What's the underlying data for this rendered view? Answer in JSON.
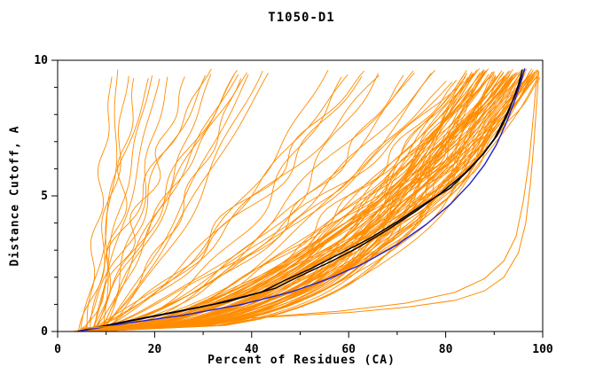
{
  "chart_data": {
    "type": "line",
    "title": "T1050-D1",
    "xlabel": "Percent of Residues (CA)",
    "ylabel": "Distance Cutoff, A",
    "xlim": [
      0,
      100
    ],
    "ylim": [
      0,
      10
    ],
    "x_major_ticks": [
      0,
      20,
      40,
      60,
      80,
      100
    ],
    "x_minor_ticks": [
      10,
      30,
      50,
      70,
      90
    ],
    "y_major_ticks": [
      0,
      5,
      10
    ],
    "y_minor_ticks": [
      1,
      2,
      3,
      4,
      6,
      7,
      8,
      9
    ],
    "grid": false,
    "legend": "none",
    "colors": {
      "ensemble": "#ff8c00",
      "highlight_blue": "#2222cc",
      "highlight_black": "#000000",
      "frame": "#000000",
      "text": "#000000",
      "background": "#ffffff"
    },
    "highlighted_series": [
      {
        "name": "model-black-1",
        "color": "#000000",
        "width": 1.4,
        "points": [
          [
            4,
            0
          ],
          [
            12,
            0.3
          ],
          [
            22,
            0.65
          ],
          [
            32,
            1.0
          ],
          [
            42,
            1.45
          ],
          [
            47,
            1.9
          ],
          [
            52,
            2.3
          ],
          [
            58,
            2.85
          ],
          [
            64,
            3.4
          ],
          [
            70,
            4.05
          ],
          [
            76,
            4.75
          ],
          [
            81,
            5.3
          ],
          [
            85,
            6.0
          ],
          [
            88,
            6.6
          ],
          [
            90.5,
            7.2
          ],
          [
            92.5,
            7.9
          ],
          [
            94,
            8.6
          ],
          [
            95,
            9.1
          ],
          [
            95.8,
            9.65
          ]
        ]
      },
      {
        "name": "model-black-2",
        "color": "#000000",
        "width": 1.4,
        "points": [
          [
            4,
            0
          ],
          [
            13,
            0.32
          ],
          [
            24,
            0.7
          ],
          [
            35,
            1.1
          ],
          [
            45,
            1.6
          ],
          [
            50,
            2.05
          ],
          [
            56,
            2.55
          ],
          [
            62,
            3.1
          ],
          [
            68,
            3.75
          ],
          [
            74,
            4.45
          ],
          [
            79,
            5.1
          ],
          [
            84,
            5.85
          ],
          [
            87.5,
            6.5
          ],
          [
            90,
            7.1
          ],
          [
            92,
            7.8
          ],
          [
            93.8,
            8.5
          ],
          [
            95.2,
            9.1
          ],
          [
            96.2,
            9.65
          ]
        ]
      },
      {
        "name": "model-blue",
        "color": "#2222cc",
        "width": 1.4,
        "points": [
          [
            4,
            0
          ],
          [
            14,
            0.3
          ],
          [
            26,
            0.6
          ],
          [
            38,
            1.0
          ],
          [
            48,
            1.45
          ],
          [
            56,
            1.95
          ],
          [
            63,
            2.5
          ],
          [
            70,
            3.2
          ],
          [
            76,
            3.95
          ],
          [
            81,
            4.7
          ],
          [
            85,
            5.45
          ],
          [
            88,
            6.15
          ],
          [
            90.5,
            6.9
          ],
          [
            92.5,
            7.7
          ],
          [
            94.2,
            8.5
          ],
          [
            95.5,
            9.2
          ],
          [
            96.3,
            9.7
          ]
        ]
      },
      {
        "name": "outlier-low-orange-1",
        "color": "#ff8c00",
        "width": 1.0,
        "points": [
          [
            5,
            0.1
          ],
          [
            15,
            0.25
          ],
          [
            30,
            0.4
          ],
          [
            45,
            0.55
          ],
          [
            60,
            0.7
          ],
          [
            72,
            0.9
          ],
          [
            82,
            1.15
          ],
          [
            88,
            1.5
          ],
          [
            92,
            2.0
          ],
          [
            95,
            2.9
          ],
          [
            96.5,
            4.0
          ],
          [
            97.5,
            5.5
          ],
          [
            98.2,
            7.0
          ],
          [
            98.8,
            8.5
          ],
          [
            99.2,
            9.6
          ]
        ]
      },
      {
        "name": "outlier-low-orange-2",
        "color": "#ff8c00",
        "width": 1.0,
        "points": [
          [
            5,
            0.12
          ],
          [
            20,
            0.3
          ],
          [
            40,
            0.5
          ],
          [
            58,
            0.75
          ],
          [
            72,
            1.05
          ],
          [
            82,
            1.45
          ],
          [
            88,
            1.95
          ],
          [
            92,
            2.6
          ],
          [
            94.5,
            3.5
          ],
          [
            96,
            4.8
          ],
          [
            97.2,
            6.3
          ],
          [
            98,
            7.8
          ],
          [
            98.6,
            9.0
          ],
          [
            99,
            9.65
          ]
        ]
      }
    ],
    "ensemble_spec": {
      "note": "~115 overlapping orange model curves (indistinguishable individually); regenerated deterministically from these distribution parameters",
      "seed": 20151050,
      "samples_per_curve": 44,
      "groups": [
        {
          "name": "main-bundle",
          "count": 80,
          "x_start": [
            3,
            8
          ],
          "x_end": [
            84,
            99.5
          ],
          "y_end": [
            9.3,
            9.7
          ],
          "shape_k": [
            0.3,
            0.58
          ],
          "wiggle": [
            0.5,
            2.2
          ]
        },
        {
          "name": "mid-spread",
          "count": 16,
          "x_start": [
            3,
            9
          ],
          "x_end": [
            55,
            84
          ],
          "y_end": [
            9.2,
            9.7
          ],
          "shape_k": [
            0.5,
            0.85
          ],
          "wiggle": [
            0.8,
            2.5
          ]
        },
        {
          "name": "steep-left",
          "count": 20,
          "x_start": [
            4,
            10
          ],
          "x_end": [
            11,
            45
          ],
          "y_end": [
            9.3,
            9.7
          ],
          "shape_k": [
            0.65,
            1.25
          ],
          "wiggle": [
            0.5,
            1.8
          ]
        }
      ]
    }
  }
}
